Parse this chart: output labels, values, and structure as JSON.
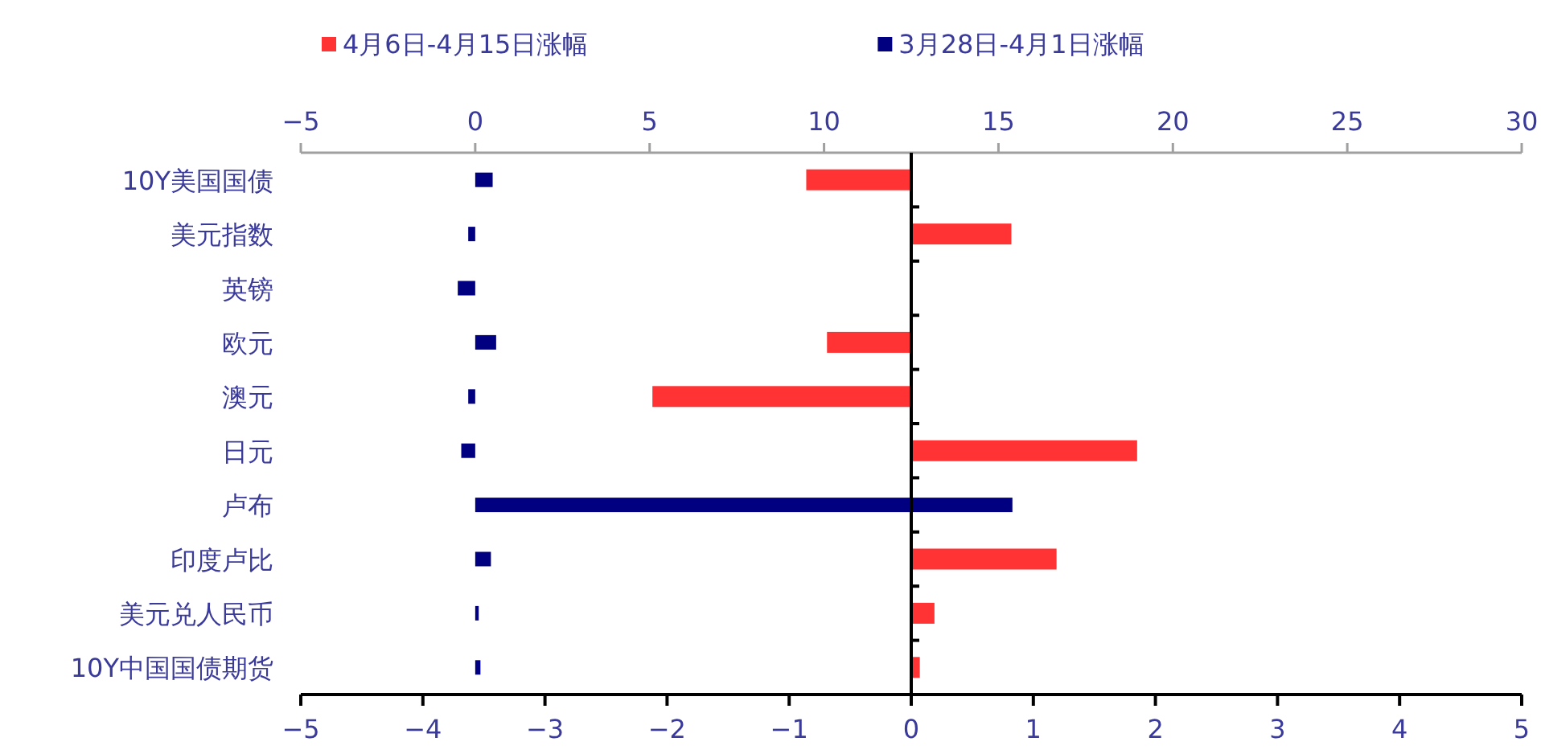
{
  "chart_data": {
    "type": "bar",
    "orientation": "horizontal",
    "legend": "top",
    "categories": [
      "10Y美国国债",
      "美元指数",
      "英镑",
      "欧元",
      "澳元",
      "日元",
      "卢布",
      "印度卢比",
      "美元兑人民币",
      "10Y中国国债期货"
    ],
    "series": [
      {
        "name": "4月6日-4月15日涨幅",
        "color": "#ff3333",
        "values": [
          -0.86,
          0.82,
          null,
          -0.69,
          -2.12,
          1.85,
          null,
          1.19,
          0.19,
          0.07
        ]
      },
      {
        "name": "3月28日-4月1日涨幅",
        "color": "#000080",
        "axis": "x2",
        "values": [
          0.5,
          -0.2,
          -0.5,
          0.6,
          -0.2,
          -0.4,
          15.4,
          0.45,
          0.1,
          0.15
        ]
      }
    ],
    "xlim": [
      -5,
      5
    ],
    "xticks": [
      -5,
      -4,
      -3,
      -2,
      -1,
      0,
      1,
      2,
      3,
      4,
      5
    ],
    "x2lim": [
      -5,
      30
    ],
    "x2ticks": [
      -5,
      0,
      5,
      10,
      15,
      20,
      25,
      30
    ]
  }
}
